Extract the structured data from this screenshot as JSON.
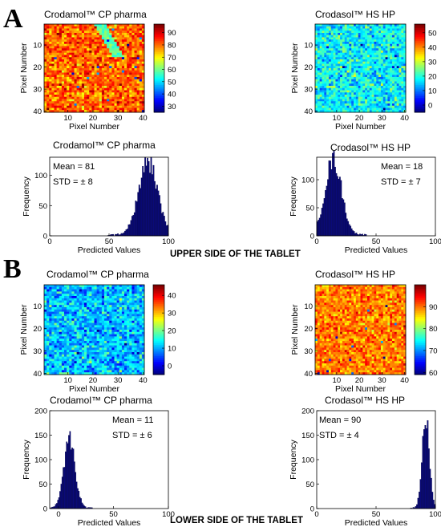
{
  "figure": {
    "panel_a": "A",
    "panel_b": "B",
    "upper_caption": "UPPER SIDE OF THE TABLET",
    "lower_caption": "LOWER SIDE OF THE TABLET"
  },
  "chart_data": [
    {
      "id": "a-map-crodamol",
      "type": "heatmap",
      "title": "Crodamol™ CP pharma",
      "xlabel": "Pixel Number",
      "ylabel": "Pixel Number",
      "grid_size": [
        40,
        40
      ],
      "x_ticks": [
        10,
        20,
        30,
        40
      ],
      "y_ticks": [
        10,
        20,
        30,
        40
      ],
      "colorbar_ticks": [
        30,
        40,
        50,
        60,
        70,
        80,
        90
      ],
      "colorbar_range": [
        25,
        97
      ],
      "mean": 81,
      "std": 8,
      "feature": "diagonal low-value streak near columns 20-30, rows 1-15"
    },
    {
      "id": "a-map-crodasol",
      "type": "heatmap",
      "title": "Crodasol™ HS HP",
      "xlabel": "Pixel Number",
      "ylabel": "Pixel Number",
      "grid_size": [
        40,
        40
      ],
      "x_ticks": [
        10,
        20,
        30,
        40
      ],
      "y_ticks": [
        10,
        20,
        30,
        40
      ],
      "colorbar_ticks": [
        0,
        10,
        20,
        30,
        40,
        50
      ],
      "colorbar_range": [
        -5,
        56
      ],
      "mean": 18,
      "std": 7
    },
    {
      "id": "a-hist-crodamol",
      "type": "bar",
      "title": "Crodamol™ CP pharma",
      "xlabel": "Predicted Values",
      "ylabel": "Frequency",
      "xlim": [
        0,
        100
      ],
      "ylim": [
        0,
        130
      ],
      "x_ticks": [
        0,
        50,
        100
      ],
      "y_ticks": [
        0,
        50,
        100
      ],
      "peak_location": 83,
      "peak_frequency": 122,
      "spread": 8,
      "annotations": [
        "Mean = 81",
        "STD = ± 8"
      ]
    },
    {
      "id": "a-hist-crodasol",
      "type": "bar",
      "title": "Crodasol™ HS HP",
      "xlabel": "Predicted Values",
      "ylabel": "Frequency",
      "xlim": [
        0,
        100
      ],
      "ylim": [
        0,
        140
      ],
      "x_ticks": [
        0,
        50,
        100
      ],
      "y_ticks": [
        0,
        50,
        100
      ],
      "peak_location": 14,
      "peak_frequency": 135,
      "spread": 7,
      "annotations": [
        "Mean = 18",
        "STD = ± 7"
      ]
    },
    {
      "id": "b-map-crodamol",
      "type": "heatmap",
      "title": "Crodamol™ CP pharma",
      "xlabel": "Pixel Number",
      "ylabel": "Pixel Number",
      "grid_size": [
        40,
        40
      ],
      "x_ticks": [
        10,
        20,
        30,
        40
      ],
      "y_ticks": [
        10,
        20,
        30,
        40
      ],
      "colorbar_ticks": [
        0,
        10,
        20,
        30,
        40
      ],
      "colorbar_range": [
        -5,
        46
      ],
      "mean": 11,
      "std": 6
    },
    {
      "id": "b-map-crodasol",
      "type": "heatmap",
      "title": "Crodasol™ HS HP",
      "xlabel": "Pixel Number",
      "ylabel": "Pixel Number",
      "grid_size": [
        40,
        40
      ],
      "x_ticks": [
        10,
        20,
        30,
        40
      ],
      "y_ticks": [
        10,
        20,
        30,
        40
      ],
      "colorbar_ticks": [
        60,
        70,
        80,
        90
      ],
      "colorbar_range": [
        59,
        100
      ],
      "mean": 90,
      "std": 4
    },
    {
      "id": "b-hist-crodamol",
      "type": "bar",
      "title": "Crodamol™ CP pharma",
      "xlabel": "Predicted Values",
      "ylabel": "Frequency",
      "xlim": [
        -8,
        100
      ],
      "ylim": [
        0,
        200
      ],
      "x_ticks": [
        0,
        50,
        100
      ],
      "y_ticks": [
        0,
        50,
        100,
        150,
        200
      ],
      "peak_location": 10,
      "peak_frequency": 145,
      "spread": 5,
      "annotations": [
        "Mean = 11",
        "STD = ± 6"
      ]
    },
    {
      "id": "b-hist-crodasol",
      "type": "bar",
      "title": "Crodasol™ HS HP",
      "xlabel": "Predicted Values",
      "ylabel": "Frequency",
      "xlim": [
        0,
        100
      ],
      "ylim": [
        0,
        200
      ],
      "x_ticks": [
        0,
        50,
        100
      ],
      "y_ticks": [
        0,
        50,
        100,
        150,
        200
      ],
      "peak_location": 92,
      "peak_frequency": 185,
      "spread": 3,
      "annotations": [
        "Mean = 90",
        "STD = ± 4"
      ]
    }
  ]
}
